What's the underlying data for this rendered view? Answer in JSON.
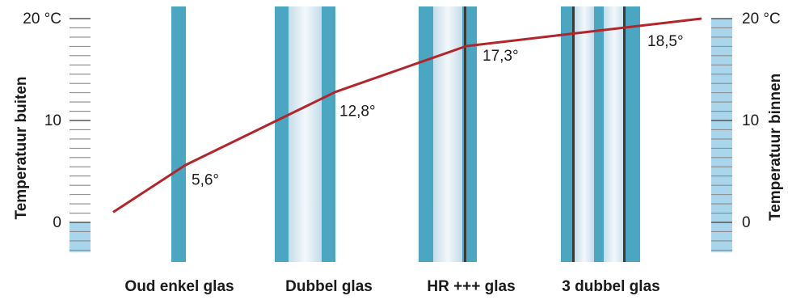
{
  "scale_left": {
    "axis_label": "Temperatuur buiten",
    "ticks": [
      {
        "value": 20,
        "label": "20 °C"
      },
      {
        "value": 10,
        "label": "10"
      },
      {
        "value": 0,
        "label": "0"
      }
    ],
    "liquid_level": 0
  },
  "scale_right": {
    "axis_label": "Temperatuur binnen",
    "ticks": [
      {
        "value": 20,
        "label": "20 °C"
      },
      {
        "value": 10,
        "label": "10"
      },
      {
        "value": 0,
        "label": "0"
      }
    ],
    "liquid_level": 20
  },
  "glazing": [
    {
      "id": "oud-enkel",
      "label": "Oud enkel glas",
      "surface_temp": 5.6,
      "surface_label": "5,6°"
    },
    {
      "id": "dubbel",
      "label": "Dubbel glas",
      "surface_temp": 12.8,
      "surface_label": "12,8°"
    },
    {
      "id": "hr",
      "label": "HR +++ glas",
      "surface_temp": 17.3,
      "surface_label": "17,3°"
    },
    {
      "id": "3-dubbel",
      "label": "3 dubbel glas",
      "surface_temp": 18.5,
      "surface_label": "18,5°"
    }
  ],
  "curve": {
    "outdoor_start": 1,
    "indoor_end": 20
  },
  "colors": {
    "glass_blue": "#4aa6c1",
    "glass_dark": "#2f8aa6",
    "gap_light": "#d8e9f1",
    "scale_fill": "#a9d6ec",
    "curve_red": "#b2252a",
    "text": "#1a1a1a",
    "tick_gray": "#8a8a8a"
  }
}
